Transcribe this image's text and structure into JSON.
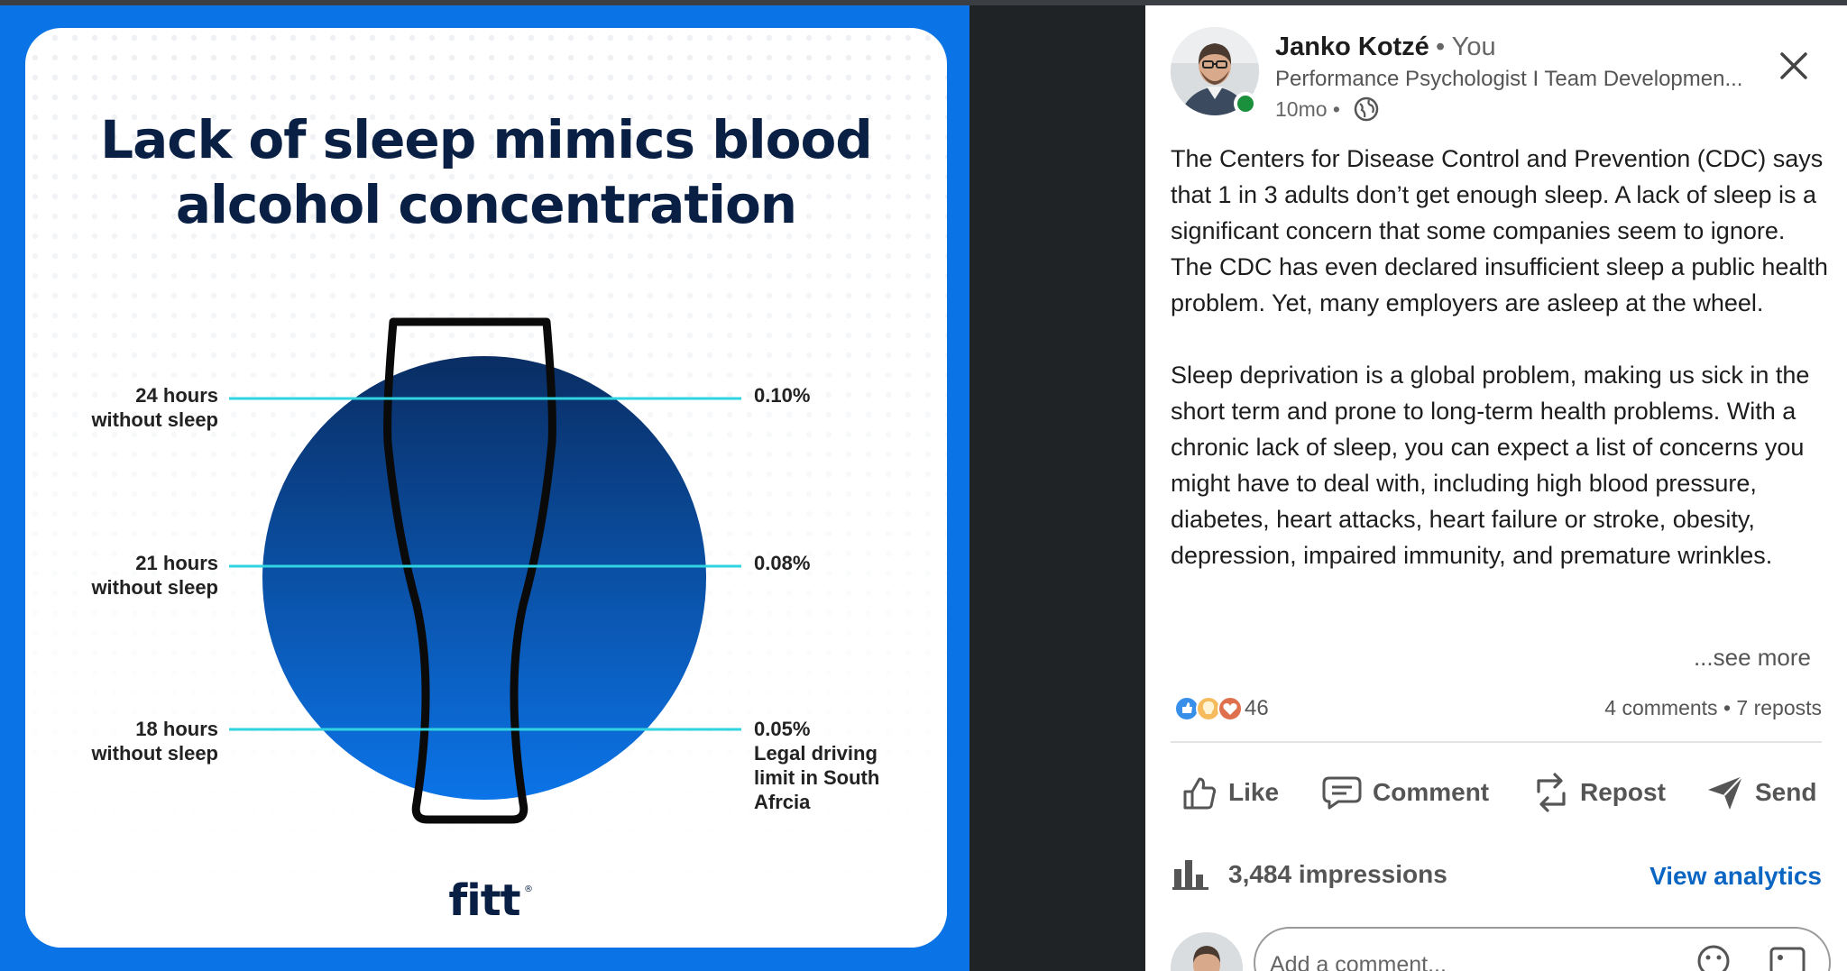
{
  "infographic": {
    "title_line1": "Lack of sleep mimics blood",
    "title_line2": "alcohol concentration",
    "levels": [
      {
        "hours_line1": "24 hours",
        "hours_line2": "without sleep",
        "bac": "0.10%"
      },
      {
        "hours_line1": "21 hours",
        "hours_line2": "without sleep",
        "bac": "0.08%"
      },
      {
        "hours_line1": "18 hours",
        "hours_line2": "without sleep",
        "bac": "0.05%",
        "note_line1": "Legal driving",
        "note_line2": "limit in South",
        "note_line3": "Afrcia"
      }
    ],
    "brand": "fitt",
    "colors": {
      "frame": "#0a73e6",
      "title": "#0a1f44",
      "circle_top": "#0a2d63",
      "circle_bottom": "#0b74e8",
      "line": "#2fd4e0"
    }
  },
  "post": {
    "author": "Janko Kotzé",
    "you_label": "• You",
    "headline": "Performance Psychologist I Team Developmen...",
    "time": "10mo •",
    "paragraph1": "The Centers for Disease Control and Prevention (CDC) says that 1 in 3 adults don’t get enough sleep. A lack of sleep is a significant concern that some companies seem to ignore. The CDC has even declared insufficient sleep a public health problem. Yet, many employers are asleep at the wheel.",
    "paragraph2": "Sleep deprivation is a global problem, making us sick in the short term and prone to long-term health problems. With a chronic lack of sleep, you can expect a list of concerns you might have to deal with, including high blood pressure, diabetes, heart attacks, heart failure or stroke, obesity, depression, impaired immunity, and premature wrinkles.",
    "see_more": "...see more",
    "reaction_count": "46",
    "comments_reposts": "4 comments • 7 reposts",
    "actions": {
      "like": "Like",
      "comment": "Comment",
      "repost": "Repost",
      "send": "Send"
    },
    "impressions": "3,484 impressions",
    "view_analytics": "View analytics",
    "comment_placeholder": "Add a comment..."
  },
  "icons": [
    "close-icon",
    "globe-icon",
    "like-icon",
    "comment-icon",
    "repost-icon",
    "send-icon",
    "bar-chart-icon",
    "emoji-icon",
    "image-icon"
  ]
}
